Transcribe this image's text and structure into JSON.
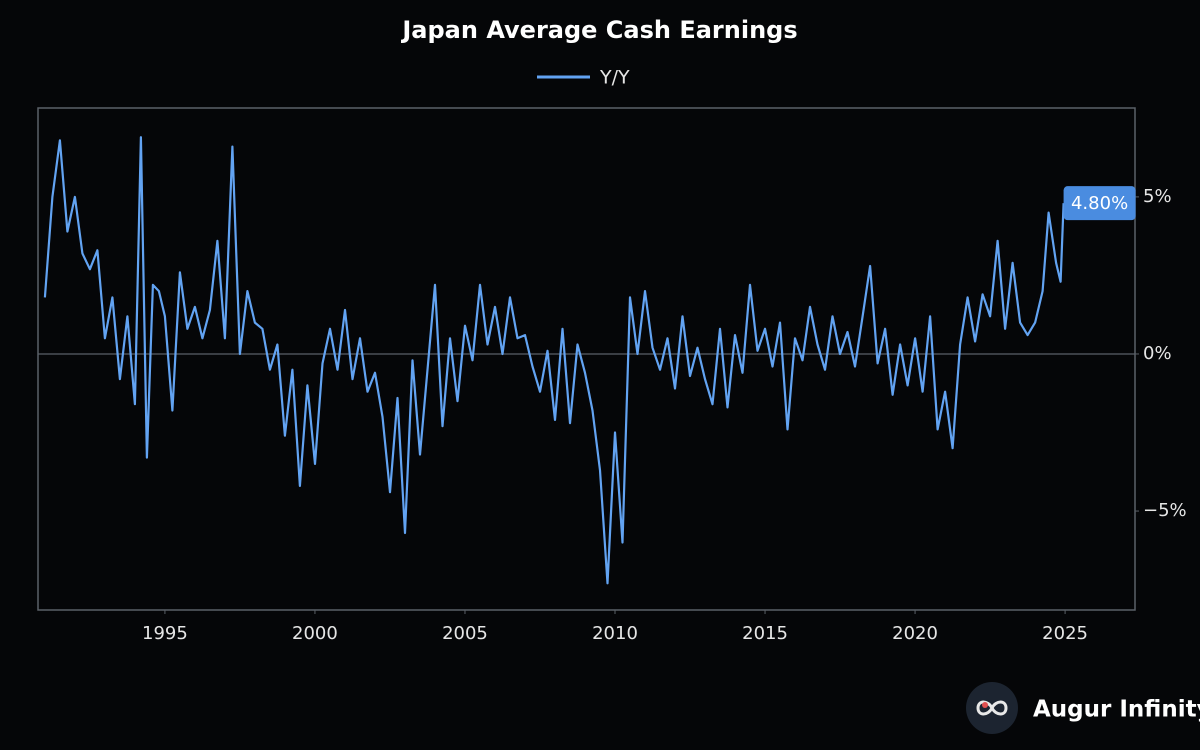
{
  "chart_data": {
    "type": "line",
    "title": "Japan Average Cash Earnings",
    "series": [
      {
        "name": "Y/Y",
        "color": "#62a3f2",
        "x": [
          1991.0,
          1991.25,
          1991.5,
          1991.75,
          1992.0,
          1992.25,
          1992.5,
          1992.75,
          1993.0,
          1993.25,
          1993.5,
          1993.75,
          1994.0,
          1994.2,
          1994.4,
          1994.6,
          1994.8,
          1995.0,
          1995.25,
          1995.5,
          1995.75,
          1996.0,
          1996.25,
          1996.5,
          1996.75,
          1997.0,
          1997.25,
          1997.5,
          1997.75,
          1998.0,
          1998.25,
          1998.5,
          1998.75,
          1999.0,
          1999.25,
          1999.5,
          1999.75,
          2000.0,
          2000.25,
          2000.5,
          2000.75,
          2001.0,
          2001.25,
          2001.5,
          2001.75,
          2002.0,
          2002.25,
          2002.5,
          2002.75,
          2003.0,
          2003.25,
          2003.5,
          2003.75,
          2004.0,
          2004.25,
          2004.5,
          2004.75,
          2005.0,
          2005.25,
          2005.5,
          2005.75,
          2006.0,
          2006.25,
          2006.5,
          2006.75,
          2007.0,
          2007.25,
          2007.5,
          2007.75,
          2008.0,
          2008.25,
          2008.5,
          2008.75,
          2009.0,
          2009.25,
          2009.5,
          2009.75,
          2010.0,
          2010.25,
          2010.5,
          2010.75,
          2011.0,
          2011.25,
          2011.5,
          2011.75,
          2012.0,
          2012.25,
          2012.5,
          2012.75,
          2013.0,
          2013.25,
          2013.5,
          2013.75,
          2014.0,
          2014.25,
          2014.5,
          2014.75,
          2015.0,
          2015.25,
          2015.5,
          2015.75,
          2016.0,
          2016.25,
          2016.5,
          2016.75,
          2017.0,
          2017.25,
          2017.5,
          2017.75,
          2018.0,
          2018.25,
          2018.5,
          2018.75,
          2019.0,
          2019.25,
          2019.5,
          2019.75,
          2020.0,
          2020.25,
          2020.5,
          2020.75,
          2021.0,
          2021.25,
          2021.5,
          2021.75,
          2022.0,
          2022.25,
          2022.5,
          2022.75,
          2023.0,
          2023.25,
          2023.5,
          2023.75,
          2024.0,
          2024.25,
          2024.45,
          2024.7,
          2024.85,
          2024.95
        ],
        "values": [
          1.8,
          5.0,
          6.8,
          3.9,
          5.0,
          3.2,
          2.7,
          3.3,
          0.5,
          1.8,
          -0.8,
          1.2,
          -1.6,
          6.9,
          -3.3,
          2.2,
          2.0,
          1.2,
          -1.8,
          2.6,
          0.8,
          1.5,
          0.5,
          1.4,
          3.6,
          0.5,
          6.6,
          0.0,
          2.0,
          1.0,
          0.8,
          -0.5,
          0.3,
          -2.6,
          -0.5,
          -4.2,
          -1.0,
          -3.5,
          -0.3,
          0.8,
          -0.5,
          1.4,
          -0.8,
          0.5,
          -1.2,
          -0.6,
          -2.0,
          -4.4,
          -1.4,
          -5.7,
          -0.2,
          -3.2,
          -0.5,
          2.2,
          -2.3,
          0.5,
          -1.5,
          0.9,
          -0.2,
          2.2,
          0.3,
          1.5,
          0.0,
          1.8,
          0.5,
          0.6,
          -0.4,
          -1.2,
          0.1,
          -2.1,
          0.8,
          -2.2,
          0.3,
          -0.6,
          -1.8,
          -3.7,
          -7.3,
          -2.5,
          -6.0,
          1.8,
          0.0,
          2.0,
          0.2,
          -0.5,
          0.5,
          -1.1,
          1.2,
          -0.7,
          0.2,
          -0.8,
          -1.6,
          0.8,
          -1.7,
          0.6,
          -0.6,
          2.2,
          0.1,
          0.8,
          -0.4,
          1.0,
          -2.4,
          0.5,
          -0.2,
          1.5,
          0.3,
          -0.5,
          1.2,
          0.0,
          0.7,
          -0.4,
          1.2,
          2.8,
          -0.3,
          0.8,
          -1.3,
          0.3,
          -1.0,
          0.5,
          -1.2,
          1.2,
          -2.4,
          -1.2,
          -3.0,
          0.3,
          1.8,
          0.4,
          1.9,
          1.2,
          3.6,
          0.8,
          2.9,
          1.0,
          0.6,
          1.0,
          2.0,
          4.5,
          2.9,
          2.3,
          4.8
        ]
      }
    ],
    "xlim": [
      1990.77,
      2027.33
    ],
    "xticks": [
      1995,
      2000,
      2005,
      2010,
      2015,
      2020,
      2025
    ],
    "ylim": [
      -8.15,
      7.83
    ],
    "yticks": [
      {
        "value": 5,
        "label": "5%"
      },
      {
        "value": 0,
        "label": "0%"
      },
      {
        "value": -5,
        "label": "−5%"
      }
    ],
    "zero_line": true,
    "legend": "top",
    "annotations": [
      {
        "x": 2024.95,
        "value": 4.8,
        "label": "4.80%"
      }
    ]
  },
  "footer": {
    "brand": "Augur Infinity"
  }
}
